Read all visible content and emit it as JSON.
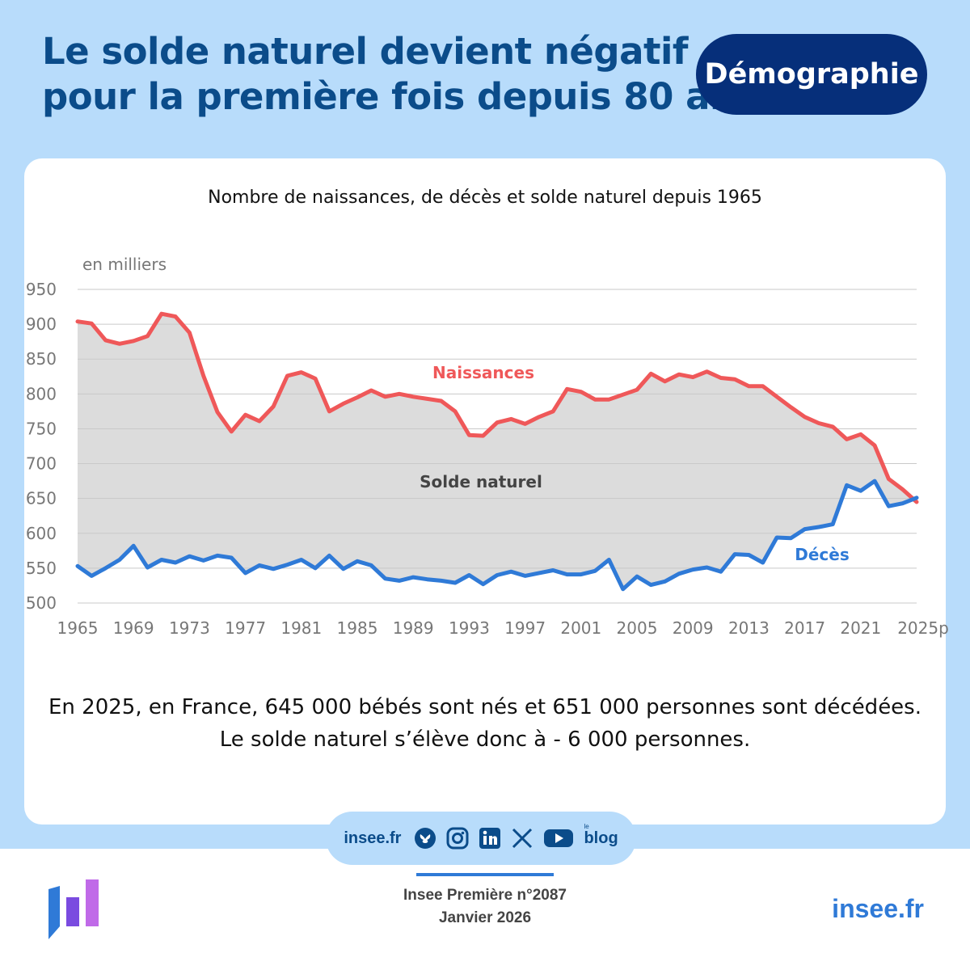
{
  "headline": {
    "line1": "Le solde naturel devient négatif",
    "line2": "pour la première fois depuis 80 ans"
  },
  "tag": "Démographie",
  "chart_title": "Nombre de naissances, de décès et solde naturel depuis 1965",
  "chart_data": {
    "type": "line",
    "title": "Nombre de naissances, de décès et solde naturel depuis 1965",
    "ylabel": "en milliers",
    "xlabel": "",
    "ylim": [
      500,
      950
    ],
    "yticks": [
      500,
      550,
      600,
      650,
      700,
      750,
      800,
      850,
      900,
      950
    ],
    "xlim": [
      1965,
      2025
    ],
    "xticks": [
      "1965",
      "1969",
      "1973",
      "1977",
      "1981",
      "1985",
      "1989",
      "1993",
      "1997",
      "2001",
      "2005",
      "2009",
      "2013",
      "2017",
      "2021",
      "2025p"
    ],
    "grid": true,
    "area_label": "Solde naturel",
    "series": [
      {
        "name": "Naissances",
        "color": "#ef5859",
        "x": [
          1965,
          1966,
          1967,
          1968,
          1969,
          1970,
          1971,
          1972,
          1973,
          1974,
          1975,
          1976,
          1977,
          1978,
          1979,
          1980,
          1981,
          1982,
          1983,
          1984,
          1985,
          1986,
          1987,
          1988,
          1989,
          1990,
          1991,
          1992,
          1993,
          1994,
          1995,
          1996,
          1997,
          1998,
          1999,
          2000,
          2001,
          2002,
          2003,
          2004,
          2005,
          2006,
          2007,
          2008,
          2009,
          2010,
          2011,
          2012,
          2013,
          2014,
          2015,
          2016,
          2017,
          2018,
          2019,
          2020,
          2021,
          2022,
          2023,
          2024,
          2025
        ],
        "values": [
          904,
          901,
          877,
          872,
          876,
          883,
          915,
          911,
          888,
          826,
          774,
          746,
          770,
          761,
          782,
          826,
          831,
          822,
          775,
          786,
          795,
          805,
          796,
          800,
          796,
          793,
          790,
          775,
          741,
          740,
          759,
          764,
          757,
          767,
          775,
          807,
          803,
          792,
          792,
          799,
          806,
          829,
          818,
          828,
          824,
          832,
          823,
          821,
          811,
          811,
          796,
          781,
          767,
          758,
          753,
          735,
          742,
          726,
          678,
          663,
          645
        ]
      },
      {
        "name": "Décès",
        "color": "#2f7ad7",
        "x": [
          1965,
          1966,
          1967,
          1968,
          1969,
          1970,
          1971,
          1972,
          1973,
          1974,
          1975,
          1976,
          1977,
          1978,
          1979,
          1980,
          1981,
          1982,
          1983,
          1984,
          1985,
          1986,
          1987,
          1988,
          1989,
          1990,
          1991,
          1992,
          1993,
          1994,
          1995,
          1996,
          1997,
          1998,
          1999,
          2000,
          2001,
          2002,
          2003,
          2004,
          2005,
          2006,
          2007,
          2008,
          2009,
          2010,
          2011,
          2012,
          2013,
          2014,
          2015,
          2016,
          2017,
          2018,
          2019,
          2020,
          2021,
          2022,
          2023,
          2024,
          2025
        ],
        "values": [
          553,
          539,
          550,
          562,
          582,
          551,
          562,
          558,
          567,
          561,
          568,
          565,
          543,
          554,
          549,
          555,
          562,
          550,
          568,
          549,
          560,
          554,
          535,
          532,
          537,
          534,
          532,
          529,
          540,
          527,
          540,
          545,
          539,
          543,
          547,
          541,
          541,
          546,
          562,
          520,
          538,
          526,
          531,
          542,
          548,
          551,
          545,
          570,
          569,
          558,
          594,
          593,
          606,
          609,
          613,
          669,
          661,
          675,
          639,
          643,
          651
        ]
      }
    ]
  },
  "caption": {
    "line1": "En 2025, en France, 645 000 bébés sont nés et 651 000 personnes sont décédées.",
    "line2": "Le solde naturel s’élève donc à - 6 000 personnes."
  },
  "social": {
    "site": "insee.fr",
    "icons": [
      "bluesky-icon",
      "instagram-icon",
      "linkedin-icon",
      "x-icon",
      "youtube-icon"
    ],
    "blog": "blog",
    "blog_small": "le"
  },
  "publication": {
    "line1": "Insee Première n°2087",
    "line2": "Janvier 2026"
  },
  "footer_site": "insee.fr",
  "colors": {
    "background": "#b8dcfb",
    "headline": "#0b4c8a",
    "tag_background": "#062f7a",
    "area_fill": "#dcdcdc",
    "accent": "#2f7ad7"
  }
}
